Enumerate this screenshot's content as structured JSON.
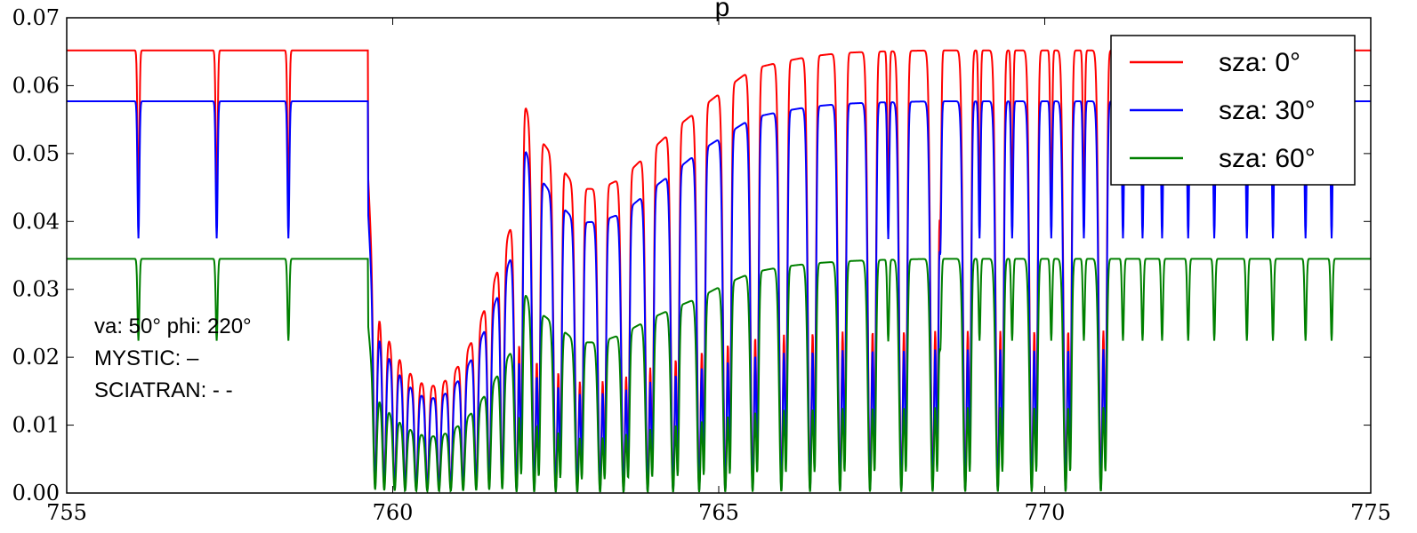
{
  "chart_data": {
    "type": "line",
    "title": "",
    "xlabel": "",
    "ylabel": "",
    "xlim": [
      755,
      775
    ],
    "ylim": [
      0.0,
      0.07
    ],
    "x_ticks": [
      755,
      760,
      765,
      770,
      775
    ],
    "x_tick_labels": [
      "755",
      "760",
      "765",
      "770",
      "775"
    ],
    "y_ticks": [
      0.0,
      0.01,
      0.02,
      0.03,
      0.04,
      0.05,
      0.06,
      0.07
    ],
    "y_tick_labels": [
      "0.00",
      "0.01",
      "0.02",
      "0.03",
      "0.04",
      "0.05",
      "0.06",
      "0.07"
    ],
    "grid": false,
    "legend_position": "top-right",
    "annotation_lines": [
      "va: 50° phi: 220°",
      "MYSTIC: –",
      "SCIATRAN: - -"
    ],
    "title_fragment": "p",
    "absorption_band": {
      "band_start": 759.62,
      "band_sharpness": 0.045,
      "r_branch_lines": [
        759.73,
        759.87,
        760.03,
        760.19,
        760.36,
        760.53,
        760.71,
        760.89,
        761.08,
        761.28,
        761.48,
        761.68
      ],
      "p_branch_lines": [
        761.9,
        762.17,
        762.5,
        762.83,
        763.18,
        763.54,
        763.91,
        764.3,
        764.7,
        765.1,
        765.52,
        765.96,
        766.4,
        766.86,
        767.32,
        767.8,
        768.28,
        768.78,
        769.28,
        769.8,
        770.32,
        770.86
      ],
      "weak_lines": [
        756.1,
        757.3,
        758.4,
        767.6,
        768.4,
        769.0,
        769.5,
        770.1,
        770.6,
        771.2,
        771.5,
        771.8,
        772.2,
        772.6,
        773.1,
        773.5,
        774.0,
        774.4
      ]
    },
    "series": [
      {
        "name": "sza: 0°",
        "color": "#ff0000",
        "baseline": 0.0652,
        "p_branch_peaks": [
          0.0606,
          0.0534,
          0.049,
          0.0448,
          0.0448,
          0.0465,
          0.05,
          0.0535,
          0.0565,
          0.0595,
          0.0625,
          0.0635,
          0.0643,
          0.0648,
          0.065,
          0.0651,
          0.0652,
          0.0652,
          0.0652,
          0.0652,
          0.0652,
          0.0652
        ]
      },
      {
        "name": "sza: 30°",
        "color": "#0000ff",
        "baseline": 0.0577,
        "p_branch_peaks": [
          0.0534,
          0.0476,
          0.0432,
          0.0398,
          0.04,
          0.0413,
          0.0443,
          0.0472,
          0.0503,
          0.0527,
          0.0553,
          0.0562,
          0.0569,
          0.0573,
          0.0575,
          0.0576,
          0.0577,
          0.0577,
          0.0577,
          0.0577,
          0.0577,
          0.0577
        ]
      },
      {
        "name": "sza: 60°",
        "color": "#008000",
        "baseline": 0.0345,
        "p_branch_peaks": [
          0.0313,
          0.0272,
          0.0248,
          0.0222,
          0.0222,
          0.0235,
          0.0255,
          0.0272,
          0.0288,
          0.0308,
          0.0325,
          0.0333,
          0.0338,
          0.0341,
          0.0343,
          0.0344,
          0.0345,
          0.0345,
          0.0345,
          0.0345,
          0.0345,
          0.0345
        ]
      }
    ]
  }
}
